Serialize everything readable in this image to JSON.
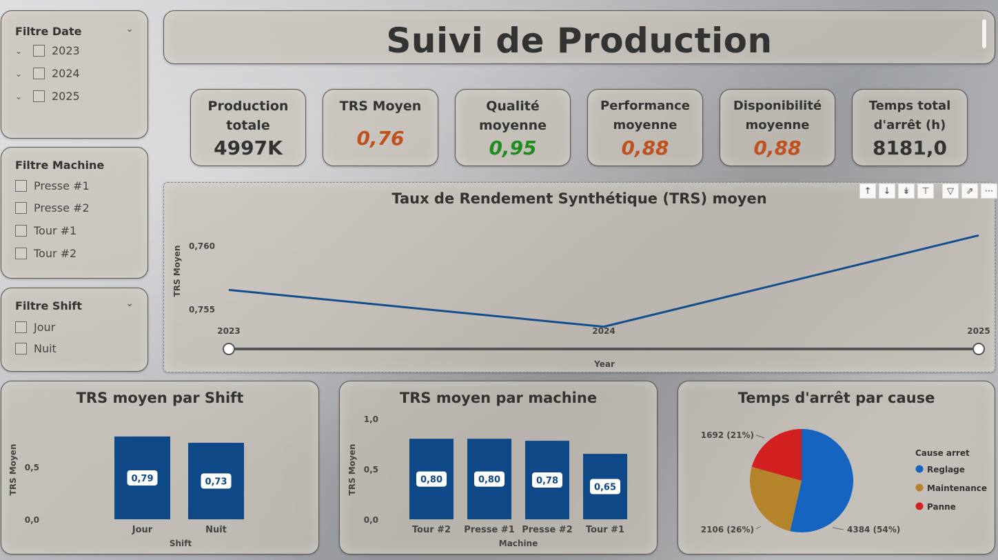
{
  "header": {
    "title": "Suivi de Production"
  },
  "filters": {
    "date": {
      "title": "Filtre Date",
      "items": [
        "2023",
        "2024",
        "2025"
      ]
    },
    "machine": {
      "title": "Filtre Machine",
      "items": [
        "Presse #1",
        "Presse #2",
        "Tour #1",
        "Tour #2"
      ]
    },
    "shift": {
      "title": "Filtre Shift",
      "items": [
        "Jour",
        "Nuit"
      ]
    }
  },
  "kpis": [
    {
      "label": "Production totale",
      "value": "4997K",
      "color": "#333333"
    },
    {
      "label": "TRS Moyen",
      "value": "0,76",
      "color": "#c0501e"
    },
    {
      "label": "Qualité moyenne",
      "value": "0,95",
      "color": "#1e8c1e"
    },
    {
      "label": "Performance moyenne",
      "value": "0,88",
      "color": "#c0501e"
    },
    {
      "label": "Disponibilité moyenne",
      "value": "0,88",
      "color": "#c0501e"
    },
    {
      "label": "Temps total d'arrêt (h)",
      "value": "8181,0",
      "color": "#333333"
    }
  ],
  "chart_data": [
    {
      "type": "line",
      "title": "Taux de Rendement Synthétique (TRS) moyen",
      "xlabel": "Year",
      "ylabel": "TRS Moyen",
      "x": [
        "2023",
        "2024",
        "2025"
      ],
      "values": [
        0.7565,
        0.7536,
        0.7608
      ],
      "yticks": [
        "0,755",
        "0,760"
      ],
      "ytick_values": [
        0.755,
        0.76
      ],
      "color": "#124e8c",
      "slider": {
        "start": "2023",
        "end": "2025"
      }
    },
    {
      "type": "bar",
      "title": "TRS moyen par Shift",
      "xlabel": "Shift",
      "ylabel": "TRS Moyen",
      "categories": [
        "Jour",
        "Nuit"
      ],
      "values": [
        0.79,
        0.73
      ],
      "labels": [
        "0,79",
        "0,73"
      ],
      "yticks": [
        "0,0",
        "0,5"
      ],
      "ytick_values": [
        0,
        0.5
      ],
      "ylim": [
        0,
        1
      ],
      "color": "#0f4887"
    },
    {
      "type": "bar",
      "title": "TRS moyen par machine",
      "xlabel": "Machine",
      "ylabel": "TRS Moyen",
      "categories": [
        "Tour #2",
        "Presse #1",
        "Presse #2",
        "Tour #1"
      ],
      "values": [
        0.8,
        0.8,
        0.78,
        0.65
      ],
      "labels": [
        "0,80",
        "0,80",
        "0,78",
        "0,65"
      ],
      "yticks": [
        "0,0",
        "0,5",
        "1,0"
      ],
      "ytick_values": [
        0,
        0.5,
        1.0
      ],
      "ylim": [
        0,
        1
      ],
      "color": "#0f4887"
    },
    {
      "type": "pie",
      "title": "Temps d'arrêt par cause",
      "legend_title": "Cause arret",
      "slices": [
        {
          "name": "Reglage",
          "value": 4384,
          "label": "4384 (54%)",
          "color": "#1565c0"
        },
        {
          "name": "Maintenance",
          "value": 2106,
          "label": "2106 (26%)",
          "color": "#b5832a"
        },
        {
          "name": "Panne",
          "value": 1692,
          "label": "1692 (21%)",
          "color": "#d32020"
        }
      ]
    }
  ],
  "icons": [
    "chevron-down-icon",
    "expand-icon",
    "sort-up-icon",
    "sort-down-icon",
    "drill-down-icon",
    "hierarchy-icon",
    "filter-icon",
    "focus-mode-icon",
    "more-options-icon"
  ]
}
